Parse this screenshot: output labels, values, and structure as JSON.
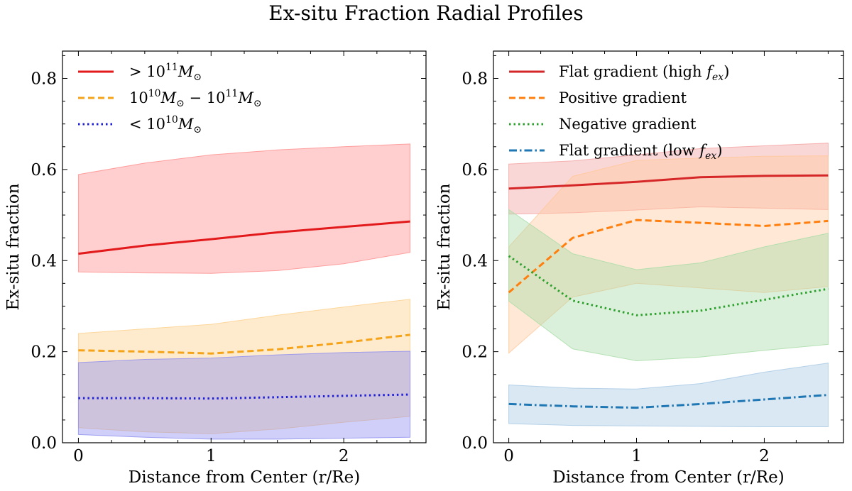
{
  "figure_title": "Ex-situ Fraction Radial Profiles",
  "chart_data": [
    {
      "type": "line",
      "xlabel": "Distance from Center (r/Re)",
      "ylabel": "Ex-situ fraction",
      "xlim": [
        -0.12,
        2.62
      ],
      "ylim": [
        0,
        0.86
      ],
      "xticks": [
        0,
        1,
        2
      ],
      "yticks": [
        0.0,
        0.2,
        0.4,
        0.6,
        0.8
      ],
      "legend_position": "upper-left",
      "series": [
        {
          "name": "> 10^11 M_sun",
          "legend_main": "> 10",
          "legend_sup": "11",
          "legend_rest": "M",
          "legend_sub": "⊙",
          "color": "#e31a1c",
          "dash": "solid",
          "band_color": "#ff8c8c",
          "x": [
            0,
            0.5,
            1,
            1.5,
            2,
            2.5
          ],
          "y": [
            0.415,
            0.433,
            0.447,
            0.462,
            0.474,
            0.486
          ],
          "lower": [
            0.375,
            0.373,
            0.372,
            0.378,
            0.393,
            0.418
          ],
          "upper": [
            0.589,
            0.614,
            0.632,
            0.643,
            0.65,
            0.656
          ]
        },
        {
          "name": "10^10 M_sun - 10^11 M_sun",
          "legend_main": "10",
          "legend_sup": "10",
          "legend_rest": "M",
          "legend_sub": "⊙",
          "legend_tail_main": " − 10",
          "legend_tail_sup": "11",
          "legend_tail_rest": "M",
          "legend_tail_sub": "⊙",
          "color": "#f5a318",
          "dash": "dashed",
          "band_color": "#fdd08a",
          "x": [
            0,
            0.5,
            1,
            1.5,
            2,
            2.5
          ],
          "y": [
            0.203,
            0.2,
            0.196,
            0.205,
            0.22,
            0.237
          ],
          "lower": [
            0.033,
            0.024,
            0.02,
            0.03,
            0.045,
            0.058
          ],
          "upper": [
            0.24,
            0.25,
            0.26,
            0.28,
            0.298,
            0.315
          ]
        },
        {
          "name": "< 10^10 M_sun",
          "legend_main": "< 10",
          "legend_sup": "10",
          "legend_rest": "M",
          "legend_sub": "⊙",
          "color": "#1f1fd6",
          "dash": "dotted",
          "band_color": "#8c8cf0",
          "x": [
            0,
            0.5,
            1,
            1.5,
            2,
            2.5
          ],
          "y": [
            0.098,
            0.098,
            0.097,
            0.1,
            0.103,
            0.106
          ],
          "lower": [
            0.018,
            0.012,
            0.008,
            0.008,
            0.01,
            0.012
          ],
          "upper": [
            0.176,
            0.183,
            0.186,
            0.193,
            0.198,
            0.201
          ]
        }
      ]
    },
    {
      "type": "line",
      "xlabel": "Distance from Center (r/Re)",
      "ylabel": "Ex-situ fraction",
      "xlim": [
        -0.12,
        2.62
      ],
      "ylim": [
        0,
        0.86
      ],
      "xticks": [
        0,
        1,
        2
      ],
      "yticks": [
        0.0,
        0.2,
        0.4,
        0.6,
        0.8
      ],
      "legend_position": "upper-left",
      "series": [
        {
          "name": "Flat gradient (high f_ex)",
          "legend_main": "Flat gradient (high ",
          "legend_f": "f",
          "legend_fsub": "ex",
          "legend_close": ")",
          "color": "#d62728",
          "dash": "solid",
          "band_color": "#f4a0a0",
          "x": [
            0,
            0.5,
            1,
            1.5,
            2,
            2.5
          ],
          "y": [
            0.558,
            0.565,
            0.573,
            0.583,
            0.586,
            0.587
          ],
          "lower": [
            0.502,
            0.505,
            0.511,
            0.518,
            0.515,
            0.512
          ],
          "upper": [
            0.612,
            0.619,
            0.632,
            0.646,
            0.652,
            0.658
          ]
        },
        {
          "name": "Positive gradient",
          "legend_main": "Positive gradient",
          "color": "#ff7f0e",
          "dash": "dashed",
          "band_color": "#ffc89a",
          "x": [
            0,
            0.5,
            1,
            1.5,
            2,
            2.5
          ],
          "y": [
            0.33,
            0.45,
            0.489,
            0.483,
            0.476,
            0.487
          ],
          "lower": [
            0.197,
            0.32,
            0.35,
            0.34,
            0.33,
            0.343
          ],
          "upper": [
            0.43,
            0.585,
            0.62,
            0.625,
            0.629,
            0.63
          ]
        },
        {
          "name": "Negative gradient",
          "legend_main": "Negative gradient",
          "color": "#2ca02c",
          "dash": "dotted",
          "band_color": "#a8dca8",
          "x": [
            0,
            0.5,
            1,
            1.5,
            2,
            2.5
          ],
          "y": [
            0.41,
            0.312,
            0.28,
            0.29,
            0.314,
            0.338
          ],
          "lower": [
            0.311,
            0.206,
            0.18,
            0.188,
            0.203,
            0.216
          ],
          "upper": [
            0.512,
            0.415,
            0.38,
            0.395,
            0.43,
            0.46
          ]
        },
        {
          "name": "Flat gradient (low f_ex)",
          "legend_main": "Flat gradient (low ",
          "legend_f": "f",
          "legend_fsub": "ex",
          "legend_close": ")",
          "color": "#1f77b4",
          "dash": "dashdot",
          "band_color": "#a6c8e3",
          "x": [
            0,
            0.5,
            1,
            1.5,
            2,
            2.5
          ],
          "y": [
            0.085,
            0.08,
            0.077,
            0.085,
            0.095,
            0.105
          ],
          "lower": [
            0.042,
            0.038,
            0.037,
            0.036,
            0.035,
            0.035
          ],
          "upper": [
            0.127,
            0.12,
            0.118,
            0.13,
            0.155,
            0.175
          ]
        }
      ]
    }
  ]
}
